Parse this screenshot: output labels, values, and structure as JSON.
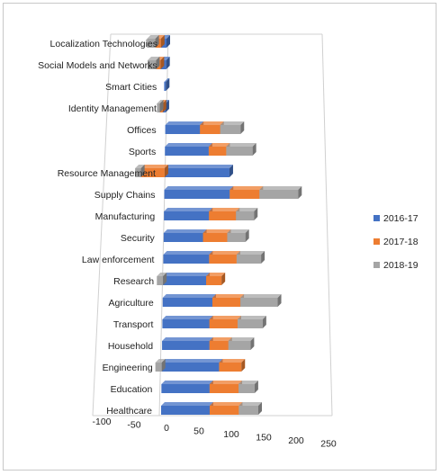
{
  "chart_data": {
    "type": "bar",
    "orientation": "horizontal",
    "stacked": true,
    "style": "3d",
    "categories": [
      "Localization Technologies",
      "Social Models and Networks",
      "Smart Cities",
      "Identity Management",
      "Offices",
      "Sports",
      "Resource Management",
      "Supply Chains",
      "Manufacturing",
      "Security",
      "Law enforcement",
      "Research",
      "Agriculture",
      "Transport",
      "Household",
      "Engineering",
      "Education",
      "Healthcare"
    ],
    "series": [
      {
        "name": "2016-17",
        "color": "#4472C4",
        "values": [
          -10,
          -10,
          -3,
          -5,
          60,
          75,
          110,
          110,
          75,
          65,
          75,
          70,
          80,
          75,
          75,
          90,
          75,
          75
        ]
      },
      {
        "name": "2017-18",
        "color": "#ED7D31",
        "values": [
          -10,
          -8,
          0,
          -5,
          35,
          30,
          -40,
          50,
          45,
          40,
          45,
          25,
          45,
          45,
          30,
          35,
          45,
          45
        ]
      },
      {
        "name": "2018-19",
        "color": "#A5A5A5",
        "values": [
          -15,
          -15,
          0,
          -5,
          35,
          45,
          -10,
          65,
          30,
          30,
          40,
          -10,
          60,
          40,
          35,
          -10,
          25,
          30
        ]
      }
    ],
    "xlim": [
      -100,
      250
    ],
    "xticks": [
      -100,
      -50,
      0,
      50,
      100,
      150,
      200,
      250
    ],
    "grid": false,
    "legend": "right"
  }
}
